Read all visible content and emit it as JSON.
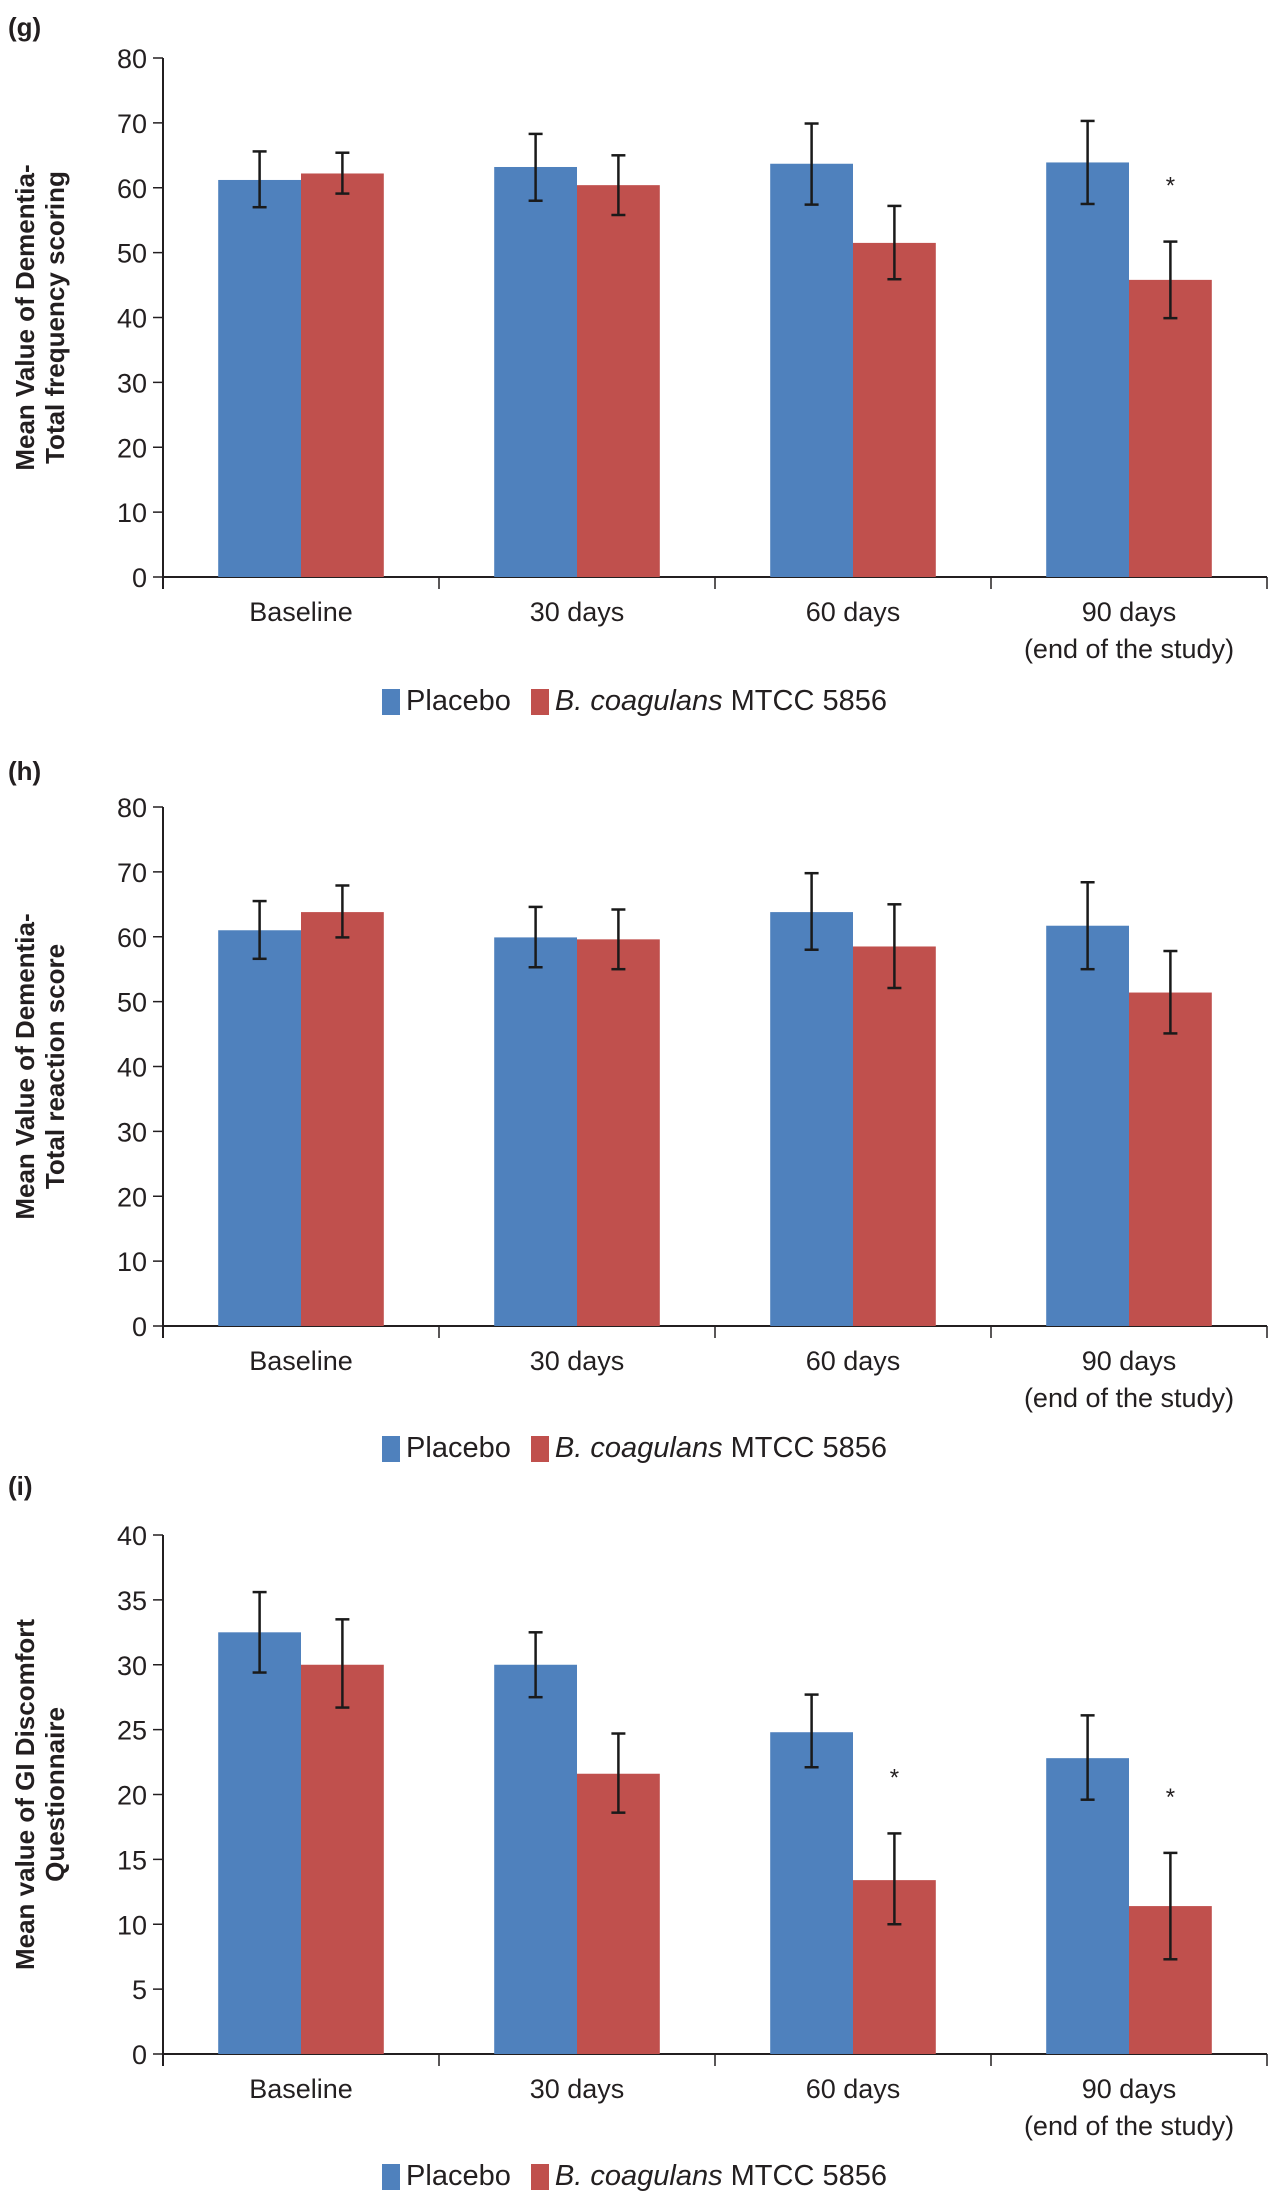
{
  "colors": {
    "placebo": "#4F81BD",
    "treatment": "#C0504D",
    "axis": "#231f20"
  },
  "legend": {
    "placebo_label": "Placebo",
    "treatment_label_italic": "B. coagulans",
    "treatment_label_rest": " MTCC 5856"
  },
  "chart_data": [
    {
      "panel": "(g)",
      "type": "bar",
      "title": "",
      "ylabel": [
        "Mean Value of Dementia-",
        "Total frequency scoring"
      ],
      "xlabel": "",
      "ylim": [
        0,
        80
      ],
      "yticks": [
        0,
        10,
        20,
        30,
        40,
        50,
        60,
        70,
        80
      ],
      "categories": [
        [
          "Baseline"
        ],
        [
          "30 days"
        ],
        [
          "60 days"
        ],
        [
          "90 days",
          "(end of the study)"
        ]
      ],
      "legend_position": "bottom",
      "grid": false,
      "series": [
        {
          "name": "Placebo",
          "values": [
            61.2,
            63.2,
            63.7,
            63.9
          ],
          "err_high": [
            65.6,
            68.3,
            69.9,
            70.3
          ],
          "err_low": [
            57.0,
            58.0,
            57.4,
            57.5
          ]
        },
        {
          "name": "B. coagulans MTCC 5856",
          "values": [
            62.2,
            60.4,
            51.5,
            45.8
          ],
          "err_high": [
            65.4,
            65.0,
            57.2,
            51.7
          ],
          "err_low": [
            59.1,
            55.8,
            45.9,
            39.9
          ]
        }
      ],
      "annotations": [
        {
          "category": 3,
          "series": 1,
          "text": "*"
        }
      ]
    },
    {
      "panel": "(h)",
      "type": "bar",
      "title": "",
      "ylabel": [
        "Mean Value of Dementia-",
        "Total reaction score"
      ],
      "xlabel": "",
      "ylim": [
        0,
        80
      ],
      "yticks": [
        0,
        10,
        20,
        30,
        40,
        50,
        60,
        70,
        80
      ],
      "categories": [
        [
          "Baseline"
        ],
        [
          "30 days"
        ],
        [
          "60 days"
        ],
        [
          "90 days",
          "(end of the study)"
        ]
      ],
      "legend_position": "bottom",
      "grid": false,
      "series": [
        {
          "name": "Placebo",
          "values": [
            61.0,
            59.9,
            63.8,
            61.7
          ],
          "err_high": [
            65.5,
            64.6,
            69.8,
            68.4
          ],
          "err_low": [
            56.6,
            55.3,
            58.0,
            55.0
          ]
        },
        {
          "name": "B. coagulans MTCC 5856",
          "values": [
            63.8,
            59.6,
            58.5,
            51.4
          ],
          "err_high": [
            67.9,
            64.2,
            65.0,
            57.8
          ],
          "err_low": [
            59.9,
            55.0,
            52.1,
            45.1
          ]
        }
      ],
      "annotations": []
    },
    {
      "panel": "(i)",
      "type": "bar",
      "title": "",
      "ylabel": [
        "Mean value of GI Discomfort",
        "Questionnaire"
      ],
      "xlabel": "",
      "ylim": [
        0,
        40
      ],
      "yticks": [
        0,
        5,
        10,
        15,
        20,
        25,
        30,
        35,
        40
      ],
      "categories": [
        [
          "Baseline"
        ],
        [
          "30 days"
        ],
        [
          "60 days"
        ],
        [
          "90 days",
          "(end of the study)"
        ]
      ],
      "legend_position": "bottom",
      "grid": false,
      "series": [
        {
          "name": "Placebo",
          "values": [
            32.5,
            30.0,
            24.8,
            22.8
          ],
          "err_high": [
            35.6,
            32.5,
            27.7,
            26.1
          ],
          "err_low": [
            29.4,
            27.5,
            22.1,
            19.6
          ]
        },
        {
          "name": "B. coagulans MTCC 5856",
          "values": [
            30.0,
            21.6,
            13.4,
            11.4
          ],
          "err_high": [
            33.5,
            24.7,
            17.0,
            15.5
          ],
          "err_low": [
            26.7,
            18.6,
            10.0,
            7.3
          ]
        }
      ],
      "annotations": [
        {
          "category": 2,
          "series": 1,
          "text": "*"
        },
        {
          "category": 3,
          "series": 1,
          "text": "*"
        }
      ]
    }
  ]
}
